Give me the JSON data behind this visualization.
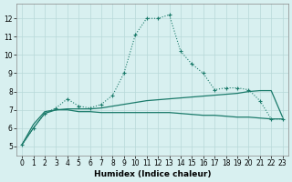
{
  "xlabel": "Humidex (Indice chaleur)",
  "x": [
    0,
    1,
    2,
    3,
    4,
    5,
    6,
    7,
    8,
    9,
    10,
    11,
    12,
    13,
    14,
    15,
    16,
    17,
    18,
    19,
    20,
    21,
    22,
    23
  ],
  "line1": [
    5.1,
    6.0,
    6.8,
    7.1,
    7.6,
    7.2,
    7.1,
    7.3,
    7.8,
    9.0,
    11.1,
    12.0,
    12.0,
    12.2,
    10.2,
    9.5,
    9.0,
    8.1,
    8.2,
    8.2,
    8.1,
    7.5,
    6.5,
    6.5
  ],
  "line2": [
    5.1,
    6.2,
    6.9,
    7.0,
    7.05,
    7.05,
    7.05,
    7.1,
    7.2,
    7.3,
    7.4,
    7.5,
    7.55,
    7.6,
    7.65,
    7.7,
    7.75,
    7.8,
    7.85,
    7.9,
    8.0,
    8.05,
    8.05,
    6.6
  ],
  "line3": [
    5.1,
    6.0,
    6.8,
    7.0,
    7.0,
    6.9,
    6.9,
    6.85,
    6.85,
    6.85,
    6.85,
    6.85,
    6.85,
    6.85,
    6.8,
    6.75,
    6.7,
    6.7,
    6.65,
    6.6,
    6.6,
    6.55,
    6.5,
    6.5
  ],
  "line_color": "#1a7a6a",
  "bg_color": "#d8f0f0",
  "grid_color": "#b8d8d8",
  "ylim": [
    4.5,
    12.8
  ],
  "xlim": [
    -0.5,
    23.5
  ],
  "yticks": [
    5,
    6,
    7,
    8,
    9,
    10,
    11,
    12
  ],
  "xticks": [
    0,
    1,
    2,
    3,
    4,
    5,
    6,
    7,
    8,
    9,
    10,
    11,
    12,
    13,
    14,
    15,
    16,
    17,
    18,
    19,
    20,
    21,
    22,
    23
  ]
}
